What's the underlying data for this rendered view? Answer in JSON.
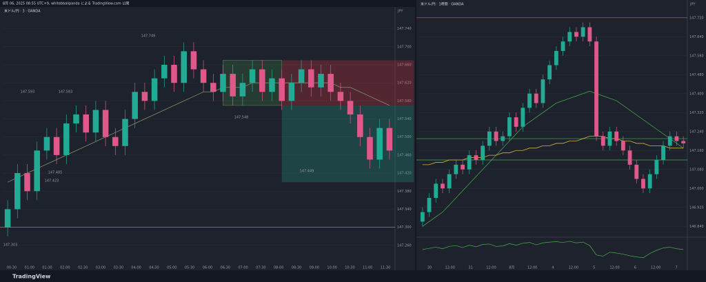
{
  "header": {
    "title": "8月 06, 2025 08:55 UTC+9, whitebbalipanda による TradingView.com 公開"
  },
  "footer": {
    "brand": "TradingView"
  },
  "chart_data": [
    {
      "type": "candlestick",
      "title": "米ドル/円 · 3 · OANDA",
      "currency": "JPY",
      "up_color": "#22ab94",
      "down_color": "#e0588a",
      "grid": true,
      "open": [
        147.3,
        147.34,
        147.42,
        147.38,
        147.47,
        147.5,
        147.46,
        147.53,
        147.55,
        147.51,
        147.56,
        147.5,
        147.48,
        147.54,
        147.6,
        147.58,
        147.63,
        147.66,
        147.62,
        147.69,
        147.65,
        147.62,
        147.6,
        147.64,
        147.59,
        147.62,
        147.65,
        147.6,
        147.63,
        147.58,
        147.62,
        147.65,
        147.61,
        147.64,
        147.6,
        147.58,
        147.55,
        147.5,
        147.45,
        147.52
      ],
      "high": [
        147.36,
        147.44,
        147.44,
        147.49,
        147.52,
        147.52,
        147.55,
        147.57,
        147.57,
        147.58,
        147.58,
        147.52,
        147.56,
        147.62,
        147.62,
        147.65,
        147.68,
        147.68,
        147.71,
        147.71,
        147.67,
        147.64,
        147.66,
        147.66,
        147.64,
        147.67,
        147.67,
        147.65,
        147.65,
        147.64,
        147.67,
        147.67,
        147.66,
        147.66,
        147.62,
        147.6,
        147.57,
        147.52,
        147.54,
        147.54
      ],
      "low": [
        147.28,
        147.32,
        147.36,
        147.36,
        147.45,
        147.44,
        147.44,
        147.51,
        147.49,
        147.49,
        147.48,
        147.46,
        147.46,
        147.52,
        147.56,
        147.56,
        147.61,
        147.6,
        147.6,
        147.63,
        147.6,
        147.58,
        147.58,
        147.57,
        147.57,
        147.6,
        147.58,
        147.58,
        147.56,
        147.56,
        147.6,
        147.59,
        147.59,
        147.58,
        147.56,
        147.53,
        147.48,
        147.43,
        147.43,
        147.45
      ],
      "close": [
        147.34,
        147.42,
        147.38,
        147.47,
        147.5,
        147.46,
        147.53,
        147.55,
        147.51,
        147.56,
        147.5,
        147.48,
        147.54,
        147.6,
        147.58,
        147.63,
        147.66,
        147.62,
        147.69,
        147.65,
        147.62,
        147.6,
        147.64,
        147.59,
        147.62,
        147.65,
        147.6,
        147.63,
        147.58,
        147.62,
        147.65,
        147.61,
        147.64,
        147.6,
        147.58,
        147.55,
        147.5,
        147.45,
        147.52,
        147.47
      ],
      "lines": [
        {
          "color": "#8a8f6a",
          "values": [
            147.4,
            147.41,
            147.42,
            147.43,
            147.44,
            147.45,
            147.46,
            147.47,
            147.48,
            147.49,
            147.5,
            147.51,
            147.52,
            147.53,
            147.54,
            147.55,
            147.56,
            147.57,
            147.58,
            147.59,
            147.6,
            147.6,
            147.61,
            147.61,
            147.61,
            147.62,
            147.62,
            147.62,
            147.62,
            147.62,
            147.62,
            147.62,
            147.62,
            147.62,
            147.61,
            147.61,
            147.6,
            147.59,
            147.58,
            147.57
          ]
        }
      ],
      "hlines": [
        {
          "value": 147.3,
          "color": "#4caf50"
        }
      ],
      "position": {
        "entry": 147.57,
        "stop": 147.67,
        "target": 147.4
      },
      "annotations": [
        "147.749",
        "147.593",
        "147.583",
        "147.485",
        "147.423",
        "147.303",
        "147.548",
        "147.449"
      ],
      "ylim": [
        147.22,
        147.77
      ],
      "yticks": [
        {
          "value": 147.26,
          "label": "147.260"
        },
        {
          "value": 147.3,
          "label": "147.300"
        },
        {
          "value": 147.34,
          "label": "147.340"
        },
        {
          "value": 147.38,
          "label": "147.380"
        },
        {
          "value": 147.42,
          "label": "147.420"
        },
        {
          "value": 147.46,
          "label": "147.460"
        },
        {
          "value": 147.5,
          "label": "147.500"
        },
        {
          "value": 147.54,
          "label": "147.540"
        },
        {
          "value": 147.58,
          "label": "147.580"
        },
        {
          "value": 147.62,
          "label": "147.620"
        },
        {
          "value": 147.66,
          "label": "147.660"
        },
        {
          "value": 147.7,
          "label": "147.700"
        },
        {
          "value": 147.74,
          "label": "147.740"
        }
      ],
      "xlabels": [
        "00:30",
        "01:00",
        "01:30",
        "02:00",
        "02:30",
        "03:00",
        "03:30",
        "04:00",
        "04:30",
        "05:00",
        "05:30",
        "06:00",
        "06:30",
        "07:00",
        "07:30",
        "08:00",
        "08:30",
        "09:00",
        "10:00",
        "10:30",
        "11:00",
        "11:30"
      ]
    },
    {
      "type": "candlestick",
      "title": "米ドル/円 · 1時間 · OANDA",
      "currency": "JPY",
      "up_color": "#22ab94",
      "down_color": "#e0588a",
      "grid": true,
      "open": [
        146.86,
        146.9,
        146.96,
        147.02,
        147.0,
        147.06,
        147.1,
        147.08,
        147.14,
        147.12,
        147.18,
        147.24,
        147.2,
        147.22,
        147.3,
        147.26,
        147.34,
        147.4,
        147.36,
        147.46,
        147.52,
        147.58,
        147.62,
        147.66,
        147.64,
        147.68,
        147.62,
        147.22,
        147.18,
        147.24,
        147.2,
        147.16,
        147.1,
        147.04,
        147.0,
        147.06,
        147.12,
        147.18,
        147.22,
        147.2
      ],
      "high": [
        146.92,
        146.98,
        147.04,
        147.04,
        147.08,
        147.12,
        147.12,
        147.16,
        147.16,
        147.2,
        147.26,
        147.26,
        147.24,
        147.32,
        147.32,
        147.36,
        147.42,
        147.42,
        147.48,
        147.54,
        147.6,
        147.64,
        147.68,
        147.68,
        147.7,
        147.7,
        147.64,
        147.24,
        147.26,
        147.26,
        147.22,
        147.18,
        147.12,
        147.06,
        147.08,
        147.14,
        147.2,
        147.24,
        147.24,
        147.22
      ],
      "low": [
        146.84,
        146.88,
        146.94,
        146.98,
        146.98,
        147.04,
        147.06,
        147.06,
        147.1,
        147.1,
        147.16,
        147.18,
        147.18,
        147.2,
        147.24,
        147.24,
        147.32,
        147.34,
        147.34,
        147.44,
        147.5,
        147.56,
        147.6,
        147.62,
        147.62,
        147.6,
        147.2,
        147.16,
        147.16,
        147.18,
        147.14,
        147.08,
        147.02,
        146.98,
        146.98,
        147.04,
        147.1,
        147.16,
        147.18,
        147.17
      ],
      "close": [
        146.9,
        146.96,
        147.02,
        147.0,
        147.06,
        147.1,
        147.08,
        147.14,
        147.12,
        147.18,
        147.24,
        147.2,
        147.22,
        147.3,
        147.26,
        147.34,
        147.4,
        147.36,
        147.46,
        147.52,
        147.58,
        147.62,
        147.66,
        147.64,
        147.68,
        147.62,
        147.22,
        147.18,
        147.24,
        147.2,
        147.16,
        147.1,
        147.04,
        147.0,
        147.06,
        147.12,
        147.18,
        147.22,
        147.2,
        147.19
      ],
      "lines": [
        {
          "color": "#43a047",
          "values": [
            146.84,
            146.86,
            146.88,
            146.9,
            146.93,
            146.96,
            146.99,
            147.02,
            147.05,
            147.08,
            147.11,
            147.14,
            147.17,
            147.2,
            147.23,
            147.26,
            147.28,
            147.3,
            147.32,
            147.34,
            147.36,
            147.37,
            147.38,
            147.39,
            147.4,
            147.41,
            147.4,
            147.39,
            147.38,
            147.37,
            147.35,
            147.33,
            147.31,
            147.29,
            147.27,
            147.25,
            147.23,
            147.21,
            147.19,
            147.17
          ]
        },
        {
          "color": "#d4b33a",
          "values": [
            147.1,
            147.1,
            147.11,
            147.11,
            147.12,
            147.12,
            147.12,
            147.13,
            147.13,
            147.13,
            147.14,
            147.14,
            147.15,
            147.15,
            147.16,
            147.16,
            147.17,
            147.17,
            147.18,
            147.18,
            147.19,
            147.19,
            147.2,
            147.2,
            147.21,
            147.22,
            147.22,
            147.22,
            147.21,
            147.21,
            147.2,
            147.2,
            147.19,
            147.19,
            147.18,
            147.18,
            147.18,
            147.17,
            147.17,
            147.17
          ]
        }
      ],
      "hlines": [
        {
          "value": 147.72,
          "color": "#f23645"
        },
        {
          "value": 147.21,
          "color": "#4caf50"
        },
        {
          "value": 147.12,
          "color": "#4caf50"
        }
      ],
      "oscillator": {
        "color": "#4caf50",
        "values": [
          52,
          55,
          58,
          54,
          60,
          62,
          57,
          63,
          59,
          65,
          66,
          60,
          61,
          67,
          63,
          68,
          70,
          64,
          69,
          71,
          72,
          70,
          73,
          69,
          71,
          62,
          38,
          35,
          45,
          43,
          40,
          36,
          33,
          31,
          42,
          50,
          56,
          58,
          54,
          52
        ],
        "ylim": [
          20,
          80
        ]
      },
      "ylim": [
        146.8,
        147.76
      ],
      "yticks": [
        {
          "value": 146.84,
          "label": "146.840"
        },
        {
          "value": 146.92,
          "label": "146.920"
        },
        {
          "value": 147.0,
          "label": "147.000"
        },
        {
          "value": 147.08,
          "label": "147.080"
        },
        {
          "value": 147.16,
          "label": "147.160"
        },
        {
          "value": 147.24,
          "label": "147.240"
        },
        {
          "value": 147.32,
          "label": "147.320"
        },
        {
          "value": 147.4,
          "label": "147.400"
        },
        {
          "value": 147.48,
          "label": "147.480"
        },
        {
          "value": 147.56,
          "label": "147.560"
        },
        {
          "value": 147.64,
          "label": "147.640"
        },
        {
          "value": 147.72,
          "label": "147.720"
        }
      ],
      "xlabels": [
        "30",
        "12:00",
        "31",
        "12:00",
        "8月",
        "12:00",
        "4",
        "12:00",
        "5",
        "12:00",
        "6",
        "12:00",
        "7"
      ]
    }
  ]
}
